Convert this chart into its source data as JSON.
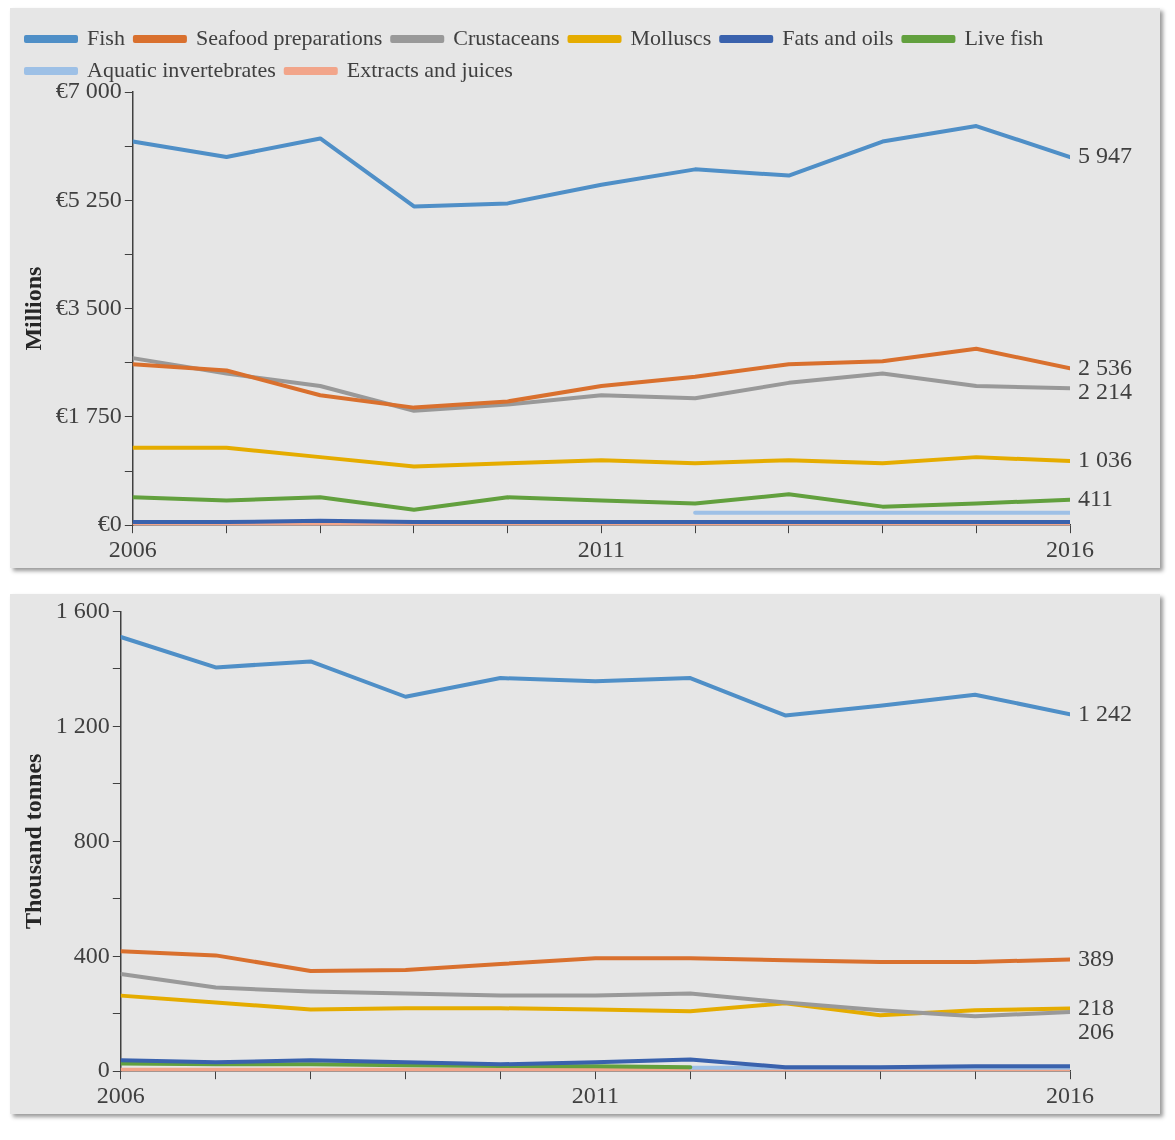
{
  "chart_data": [
    {
      "type": "line",
      "ylabel": "Millions",
      "x": [
        2006,
        2007,
        2008,
        2009,
        2010,
        2011,
        2012,
        2013,
        2014,
        2015,
        2016
      ],
      "xlim": [
        2006,
        2016
      ],
      "xticks": [
        2006,
        {
          "value": 2007,
          "label": null
        },
        {
          "value": 2008,
          "label": null
        },
        {
          "value": 2009,
          "label": null
        },
        {
          "value": 2010,
          "label": null
        },
        2011,
        {
          "value": 2012,
          "label": null
        },
        {
          "value": 2013,
          "label": null
        },
        {
          "value": 2014,
          "label": null
        },
        {
          "value": 2015,
          "label": null
        },
        2016
      ],
      "ylim": [
        0,
        7000
      ],
      "yticks": [
        {
          "value": 0,
          "label": "€0"
        },
        {
          "value": 875,
          "label": null
        },
        {
          "value": 1750,
          "label": "€1 750"
        },
        {
          "value": 2625,
          "label": null
        },
        {
          "value": 3500,
          "label": "€3 500"
        },
        {
          "value": 4375,
          "label": null
        },
        {
          "value": 5250,
          "label": "€5 250"
        },
        {
          "value": 6125,
          "label": null
        },
        {
          "value": 7000,
          "label": "€7 000"
        }
      ],
      "legend": "top",
      "line_style": "solid",
      "series": [
        {
          "name": "Fish",
          "color": "#4f8fc7",
          "values": [
            6200,
            5950,
            6250,
            5150,
            5200,
            5500,
            5750,
            5650,
            6200,
            6450,
            5947
          ],
          "value_labels": [
            null,
            null,
            null,
            null,
            null,
            null,
            null,
            null,
            null,
            null,
            "5 947"
          ]
        },
        {
          "name": "Seafood preparations",
          "color": "#d9702e",
          "values": [
            2600,
            2500,
            2100,
            1900,
            2000,
            2250,
            2400,
            2600,
            2650,
            2850,
            2536
          ],
          "value_labels": [
            null,
            null,
            null,
            null,
            null,
            null,
            null,
            null,
            null,
            null,
            "2 536"
          ]
        },
        {
          "name": "Crustaceans",
          "color": "#999999",
          "values": [
            2700,
            2450,
            2250,
            1850,
            1950,
            2100,
            2050,
            2300,
            2450,
            2250,
            2214
          ],
          "value_labels": [
            null,
            null,
            null,
            null,
            null,
            null,
            null,
            null,
            null,
            null,
            "2 214"
          ]
        },
        {
          "name": "Molluscs",
          "color": "#e5ac00",
          "values": [
            1250,
            1250,
            1100,
            950,
            1000,
            1050,
            1000,
            1050,
            1000,
            1100,
            1036
          ],
          "value_labels": [
            null,
            null,
            null,
            null,
            null,
            null,
            null,
            null,
            null,
            null,
            "1 036"
          ]
        },
        {
          "name": "Fats and oils",
          "color": "#3a62ad",
          "values": [
            50,
            50,
            70,
            50,
            50,
            50,
            50,
            50,
            50,
            50,
            50
          ]
        },
        {
          "name": "Live fish",
          "color": "#62a03e",
          "values": [
            450,
            400,
            450,
            250,
            450,
            400,
            350,
            500,
            300,
            350,
            411
          ],
          "value_labels": [
            null,
            null,
            null,
            null,
            null,
            null,
            null,
            null,
            null,
            null,
            "411"
          ]
        },
        {
          "name": "Aquatic invertebrates",
          "color": "#9dc0e6",
          "values": [
            null,
            null,
            null,
            null,
            null,
            null,
            200,
            200,
            200,
            200,
            200
          ]
        },
        {
          "name": "Extracts and juices",
          "color": "#f2a58a",
          "values": [
            10,
            10,
            10,
            10,
            10,
            10,
            10,
            10,
            10,
            10,
            10
          ]
        }
      ]
    },
    {
      "type": "line",
      "ylabel": "Thousand tonnes",
      "x": [
        2006,
        2007,
        2008,
        2009,
        2010,
        2011,
        2012,
        2013,
        2014,
        2015,
        2016
      ],
      "xlim": [
        2006,
        2016
      ],
      "xticks": [
        2006,
        {
          "value": 2007,
          "label": null
        },
        {
          "value": 2008,
          "label": null
        },
        {
          "value": 2009,
          "label": null
        },
        {
          "value": 2010,
          "label": null
        },
        2011,
        {
          "value": 2012,
          "label": null
        },
        {
          "value": 2013,
          "label": null
        },
        {
          "value": 2014,
          "label": null
        },
        {
          "value": 2015,
          "label": null
        },
        2016
      ],
      "ylim": [
        0,
        1600
      ],
      "yticks": [
        0,
        {
          "value": 200,
          "label": null
        },
        400,
        {
          "value": 600,
          "label": null
        },
        800,
        {
          "value": 1000,
          "label": null
        },
        {
          "value": 1200,
          "label": "1 200"
        },
        {
          "value": 1400,
          "label": null
        },
        {
          "value": 1600,
          "label": "1 600"
        }
      ],
      "line_style": "solid",
      "series": [
        {
          "color": "#4f8fc7",
          "values": [
            1511,
            1405,
            1426,
            1303,
            1368,
            1357,
            1368,
            1238,
            1272,
            1310,
            1242
          ],
          "value_labels": [
            null,
            null,
            null,
            null,
            null,
            null,
            null,
            null,
            null,
            null,
            "1 242"
          ]
        },
        {
          "color": "#d9702e",
          "values": [
            417,
            403,
            349,
            352,
            373,
            393,
            393,
            386,
            380,
            380,
            389
          ],
          "value_labels": [
            null,
            null,
            null,
            null,
            null,
            null,
            null,
            null,
            null,
            null,
            "389"
          ]
        },
        {
          "color": "#999999",
          "values": [
            338,
            291,
            277,
            270,
            263,
            263,
            270,
            239,
            212,
            191,
            206
          ],
          "value_labels": [
            null,
            null,
            null,
            null,
            null,
            null,
            null,
            null,
            null,
            null,
            "206"
          ]
        },
        {
          "color": "#e5ac00",
          "values": [
            263,
            239,
            215,
            219,
            219,
            215,
            209,
            236,
            195,
            212,
            218
          ],
          "value_labels": [
            null,
            null,
            null,
            null,
            null,
            null,
            null,
            null,
            null,
            null,
            "218"
          ]
        },
        {
          "color": "#3a62ad",
          "values": [
            38,
            31,
            38,
            31,
            24,
            31,
            41,
            14,
            14,
            17,
            17
          ]
        },
        {
          "color": "#62a03e",
          "values": [
            27,
            24,
            24,
            21,
            18,
            17,
            14,
            null,
            null,
            null,
            null
          ]
        },
        {
          "color": "#9dc0e6",
          "values": [
            null,
            null,
            null,
            null,
            null,
            null,
            12,
            12,
            12,
            12,
            12
          ]
        },
        {
          "color": "#f2a58a",
          "values": [
            5,
            5,
            5,
            5,
            5,
            5,
            5,
            5,
            5,
            5,
            5
          ]
        }
      ]
    }
  ]
}
